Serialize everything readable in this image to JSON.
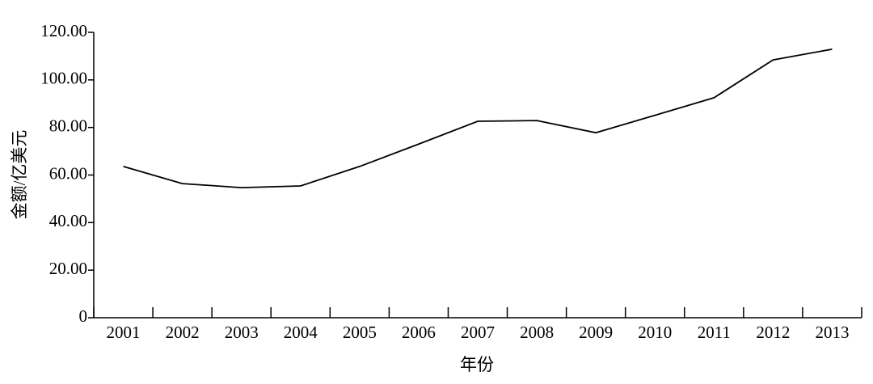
{
  "chart_data": {
    "type": "line",
    "x_label": "年份",
    "y_label": "金额/亿美元",
    "categories": [
      "2001",
      "2002",
      "2003",
      "2004",
      "2005",
      "2006",
      "2007",
      "2008",
      "2009",
      "2010",
      "2011",
      "2012",
      "2013"
    ],
    "values": [
      63.6,
      56.4,
      54.7,
      55.4,
      63.6,
      73.0,
      82.6,
      82.9,
      77.8,
      85.1,
      92.5,
      108.4,
      112.9
    ],
    "color": "#000000",
    "ylim": [
      0,
      120
    ],
    "yticks": [
      0,
      {
        "value": 20,
        "label": "20.00"
      },
      {
        "value": 40,
        "label": "40.00"
      },
      {
        "value": 60,
        "label": "60.00"
      },
      {
        "value": 80,
        "label": "80.00"
      },
      {
        "value": 100,
        "label": "100.00"
      },
      {
        "value": 120,
        "label": "120.00"
      }
    ],
    "grid": false
  }
}
